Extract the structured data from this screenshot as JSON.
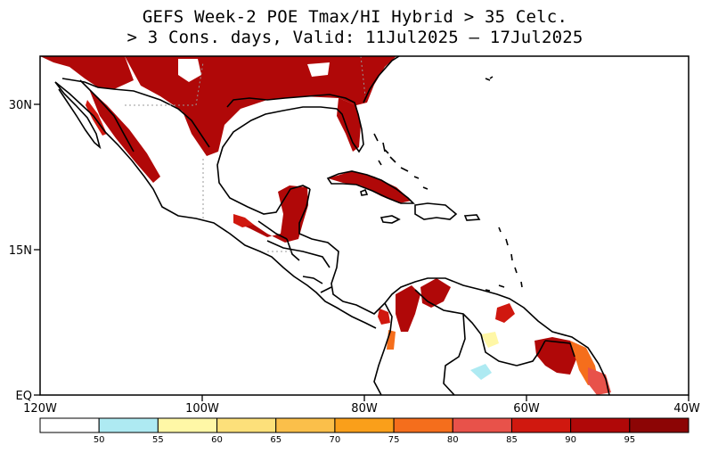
{
  "title": {
    "line1": "GEFS Week-2 POE Tmax/HI Hybrid > 35 Celc.",
    "line2": "> 3 Cons. days, Valid: 11Jul2025 – 17Jul2025"
  },
  "axes": {
    "y_ticks": [
      {
        "label": "30N",
        "lat": 30
      },
      {
        "label": "15N",
        "lat": 15
      },
      {
        "label": "EQ",
        "lat": 0
      }
    ],
    "x_ticks": [
      {
        "label": "120W",
        "lon": -120
      },
      {
        "label": "100W",
        "lon": -100
      },
      {
        "label": "80W",
        "lon": -80
      },
      {
        "label": "60W",
        "lon": -60
      },
      {
        "label": "40W",
        "lon": -40
      }
    ],
    "lon_range": [
      -120,
      -40
    ],
    "lat_range": [
      0,
      35
    ]
  },
  "colorbar": {
    "colors": [
      "#ffffff",
      "#aeeaf2",
      "#fff7a6",
      "#fde07a",
      "#fbbf4a",
      "#fa9f1a",
      "#f56e1c",
      "#e8524a",
      "#d0180f",
      "#b00808",
      "#8c0505"
    ],
    "labels": [
      "50",
      "55",
      "60",
      "65",
      "70",
      "75",
      "80",
      "85",
      "90",
      "95"
    ]
  },
  "colors": {
    "heat_high": "#b00808",
    "heat_mid": "#d0180f",
    "heat_low": "#f56e1c"
  }
}
